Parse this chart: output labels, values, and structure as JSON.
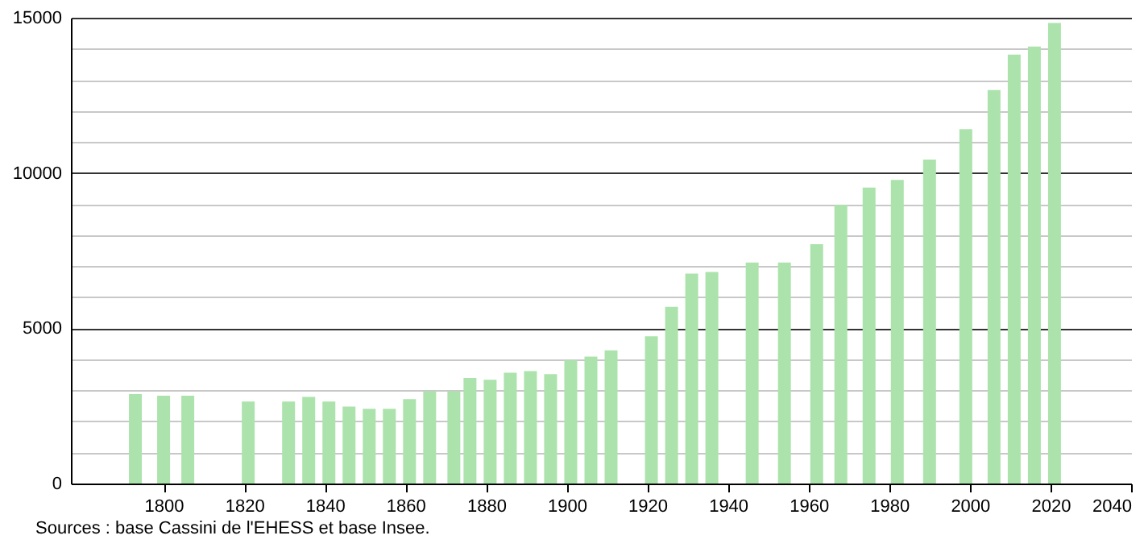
{
  "chart_data": {
    "type": "bar",
    "x": [
      1793,
      1800,
      1806,
      1821,
      1831,
      1836,
      1841,
      1846,
      1851,
      1856,
      1861,
      1866,
      1872,
      1876,
      1881,
      1886,
      1891,
      1896,
      1901,
      1906,
      1911,
      1921,
      1926,
      1931,
      1936,
      1946,
      1954,
      1962,
      1968,
      1975,
      1982,
      1990,
      1999,
      2006,
      2011,
      2016,
      2021
    ],
    "values": [
      2880,
      2830,
      2830,
      2640,
      2640,
      2790,
      2640,
      2480,
      2410,
      2410,
      2720,
      2970,
      2970,
      3400,
      3340,
      3570,
      3620,
      3520,
      3970,
      4090,
      4290,
      4740,
      5690,
      6760,
      6810,
      7120,
      7120,
      7710,
      8970,
      9530,
      9780,
      10430,
      11410,
      12670,
      13810,
      14070,
      14830
    ],
    "color": "#ace3ac",
    "xlim": [
      1777,
      2040
    ],
    "xticks": [
      1800,
      1820,
      1840,
      1860,
      1880,
      1900,
      1920,
      1940,
      1960,
      1980,
      2000,
      2020,
      2040
    ],
    "ylim": [
      0,
      15000
    ],
    "yticks": [
      0,
      {
        "value": 1000,
        "label": null
      },
      {
        "value": 2000,
        "label": null
      },
      {
        "value": 3000,
        "label": null
      },
      {
        "value": 4000,
        "label": null
      },
      5000,
      {
        "value": 6000,
        "label": null
      },
      {
        "value": 7000,
        "label": null
      },
      {
        "value": 8000,
        "label": null
      },
      {
        "value": 9000,
        "label": null
      },
      10000,
      {
        "value": 11000,
        "label": null
      },
      {
        "value": 12000,
        "label": null
      },
      {
        "value": 13000,
        "label": null
      },
      {
        "value": 14000,
        "label": null
      },
      15000
    ],
    "grid": "y",
    "annotations": [
      "Sources : base Cassini de l'EHESS et base Insee."
    ]
  }
}
